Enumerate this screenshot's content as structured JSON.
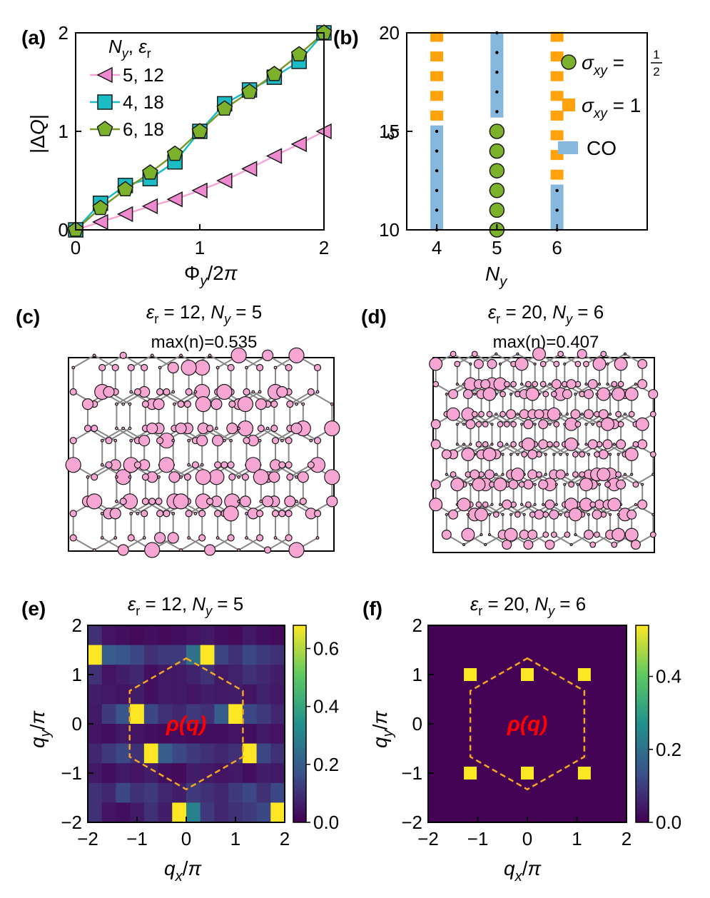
{
  "chart_data": [
    {
      "panel": "a",
      "panel_label": "(a)",
      "type": "line",
      "xlabel": "Φy/2π",
      "ylabel": "|ΔQ|",
      "xlim": [
        0,
        2
      ],
      "ylim": [
        0,
        2
      ],
      "xticks": [
        "0",
        "1",
        "2"
      ],
      "yticks": [
        "0",
        "1",
        "2"
      ],
      "legend_title": "Ny,  εr",
      "series": [
        {
          "name": "5, 12",
          "marker": "triangle-left",
          "color": "#f08ad0",
          "line_color": "#f7a6d4",
          "x": [
            0,
            0.2,
            0.4,
            0.6,
            0.8,
            1.0,
            1.2,
            1.4,
            1.6,
            1.8,
            2.0
          ],
          "y": [
            0,
            0.08,
            0.16,
            0.24,
            0.31,
            0.4,
            0.5,
            0.62,
            0.75,
            0.87,
            1.0
          ]
        },
        {
          "name": "4, 18",
          "marker": "square",
          "color": "#1bbcc4",
          "line_color": "#1bbcc4",
          "x": [
            0,
            0.2,
            0.4,
            0.6,
            0.8,
            1.0,
            1.2,
            1.4,
            1.6,
            1.8,
            2.0
          ],
          "y": [
            0,
            0.27,
            0.45,
            0.52,
            0.69,
            1.0,
            1.28,
            1.42,
            1.55,
            1.71,
            2.0
          ]
        },
        {
          "name": "6, 18",
          "marker": "pentagon",
          "color": "#7cb22b",
          "line_color": "#7a9a2a",
          "x": [
            0,
            0.2,
            0.4,
            0.6,
            0.8,
            1.0,
            1.2,
            1.4,
            1.6,
            1.8,
            2.0
          ],
          "y": [
            0,
            0.22,
            0.41,
            0.58,
            0.77,
            1.0,
            1.23,
            1.4,
            1.58,
            1.78,
            2.0
          ]
        }
      ]
    },
    {
      "panel": "b",
      "panel_label": "(b)",
      "type": "scatter",
      "xlabel": "Ny",
      "ylabel": "εr",
      "xlim": [
        3.5,
        7.5
      ],
      "ylim": [
        10,
        20
      ],
      "xticks": [
        "4",
        "5",
        "6"
      ],
      "yticks": [
        "10",
        "15",
        "20"
      ],
      "legend": [
        {
          "label": "σxy = 1/2",
          "marker": "circle",
          "color": "#7cb22b"
        },
        {
          "label": "σxy = 1",
          "marker": "square",
          "color": "#ffa20c"
        },
        {
          "label": "CO",
          "marker": "bar",
          "color": "#86b7dd"
        }
      ],
      "phases": [
        {
          "Ny": 4,
          "CO": [
            10,
            15.3
          ],
          "sigma_1": [
            15.8,
            16.8,
            17.8,
            18.8,
            19.8
          ],
          "sigma_half": [],
          "co_dots": [
            10.0,
            11.0,
            12.0,
            13.0,
            14.0,
            15.0
          ]
        },
        {
          "Ny": 5,
          "CO": [
            15.7,
            20
          ],
          "sigma_1": [],
          "sigma_half": [
            10,
            11,
            12,
            13,
            14,
            15
          ],
          "co_dots": [
            16.0,
            17.0,
            18.0,
            19.0,
            20.0
          ]
        },
        {
          "Ny": 6,
          "CO": [
            10,
            12.3
          ],
          "sigma_1": [
            12.8,
            13.8,
            14.8,
            15.8,
            16.8,
            17.8,
            18.8,
            19.8
          ],
          "sigma_half": [],
          "co_dots": [
            10.0,
            11.0,
            12.0
          ]
        }
      ]
    },
    {
      "panel": "c",
      "panel_label": "(c)",
      "type": "scatter",
      "title": "εr = 12, Ny = 5",
      "subtitle": "max(n)=0.535",
      "cols": 8,
      "rows": 5
    },
    {
      "panel": "d",
      "panel_label": "(d)",
      "type": "scatter",
      "title": "εr = 20, Ny = 6",
      "subtitle": "max(n)=0.407",
      "cols": 9,
      "rows": 6
    },
    {
      "panel": "e",
      "panel_label": "(e)",
      "type": "heatmap",
      "title": "εr = 12, Ny = 5",
      "xlabel": "qx/π",
      "ylabel": "qy/π",
      "xlim": [
        -2,
        2
      ],
      "ylim": [
        -2,
        2
      ],
      "xticks": [
        "−2",
        "−1",
        "0",
        "1",
        "2"
      ],
      "yticks": [
        "−2",
        "−1",
        "0",
        "1",
        "2"
      ],
      "colorbar_ticks": [
        "0.0",
        "0.2",
        "0.4",
        "0.6"
      ],
      "vmax": 0.68,
      "annotation": "ρ(q)",
      "grid_cols": 14,
      "grid_rows": 10,
      "values": [
        [
          0.1,
          0.04,
          0.03,
          0.02,
          0.03,
          0.02,
          0.03,
          0.04,
          0.05,
          0.03,
          0.02,
          0.05,
          0.03,
          0.02
        ],
        [
          0.68,
          0.2,
          0.18,
          0.15,
          0.1,
          0.12,
          0.12,
          0.25,
          0.68,
          0.14,
          0.1,
          0.15,
          0.12,
          0.1
        ],
        [
          0.1,
          0.04,
          0.06,
          0.08,
          0.03,
          0.05,
          0.05,
          0.07,
          0.1,
          0.05,
          0.07,
          0.1,
          0.08,
          0.06
        ],
        [
          0.06,
          0.05,
          0.04,
          0.06,
          0.03,
          0.05,
          0.05,
          0.04,
          0.06,
          0.05,
          0.06,
          0.04,
          0.07,
          0.05
        ],
        [
          0.05,
          0.12,
          0.18,
          0.68,
          0.15,
          0.1,
          0.08,
          0.12,
          0.1,
          0.2,
          0.68,
          0.15,
          0.12,
          0.08
        ],
        [
          0.04,
          0.03,
          0.05,
          0.04,
          0.03,
          0.02,
          0.03,
          0.02,
          0.03,
          0.03,
          0.04,
          0.03,
          0.05,
          0.04
        ],
        [
          0.08,
          0.12,
          0.15,
          0.1,
          0.68,
          0.2,
          0.15,
          0.12,
          0.1,
          0.08,
          0.1,
          0.68,
          0.15,
          0.1
        ],
        [
          0.05,
          0.03,
          0.05,
          0.04,
          0.06,
          0.03,
          0.02,
          0.06,
          0.05,
          0.04,
          0.05,
          0.03,
          0.06,
          0.05
        ],
        [
          0.1,
          0.08,
          0.15,
          0.1,
          0.12,
          0.08,
          0.06,
          0.12,
          0.1,
          0.08,
          0.12,
          0.15,
          0.1,
          0.15
        ],
        [
          0.1,
          0.04,
          0.03,
          0.05,
          0.1,
          0.06,
          0.68,
          0.3,
          0.12,
          0.08,
          0.1,
          0.12,
          0.15,
          0.68
        ]
      ]
    },
    {
      "panel": "f",
      "panel_label": "(f)",
      "type": "heatmap",
      "title": "εr = 20, Ny = 6",
      "xlabel": "qx/π",
      "ylabel": "qy/π",
      "xlim": [
        -2,
        2
      ],
      "ylim": [
        -2,
        2
      ],
      "xticks": [
        "−2",
        "−1",
        "0",
        "1",
        "2"
      ],
      "yticks": [
        "−2",
        "−1",
        "0",
        "1",
        "2"
      ],
      "colorbar_ticks": [
        "0.0",
        "0.2",
        "0.4"
      ],
      "vmax": 0.54,
      "annotation": "ρ(q)",
      "peaks": [
        {
          "qx": -1.15,
          "qy": 1.0,
          "value": 0.54
        },
        {
          "qx": 0.0,
          "qy": 1.0,
          "value": 0.54
        },
        {
          "qx": 1.15,
          "qy": 1.0,
          "value": 0.54
        },
        {
          "qx": -1.15,
          "qy": -1.0,
          "value": 0.54
        },
        {
          "qx": 0.0,
          "qy": -1.0,
          "value": 0.54
        },
        {
          "qx": 1.15,
          "qy": -1.0,
          "value": 0.54
        }
      ]
    }
  ],
  "colors": {
    "pink": "#f7a6d4",
    "pink_edge": "#1a1a1a",
    "orange": "#ffa20c",
    "co_blue": "#86b7dd",
    "hex_dash": "#f5a623",
    "annotation": "#ff0000",
    "lattice_bond": "#888888"
  }
}
